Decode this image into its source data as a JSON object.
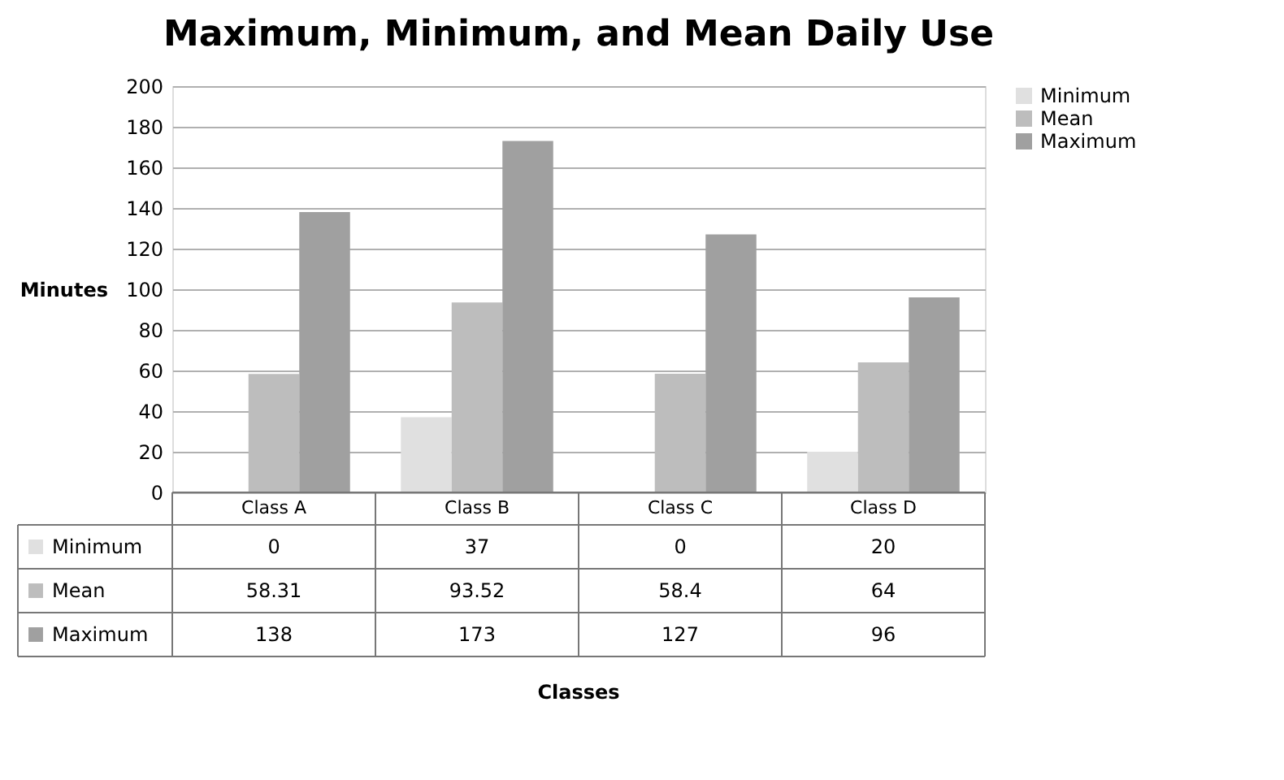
{
  "chart_data": {
    "type": "bar",
    "title": "Maximum, Minimum, and Mean Daily Use",
    "annotations": [
      "Classes"
    ],
    "ylabel": "Minutes",
    "categories": [
      "Class A",
      "Class B",
      "Class C",
      "Class D"
    ],
    "series": [
      {
        "name": "Minimum",
        "color": "#e0e0e0",
        "values": [
          0,
          37,
          0,
          20
        ]
      },
      {
        "name": "Mean",
        "color": "#bdbdbd",
        "values": [
          58.31,
          93.52,
          58.4,
          64
        ]
      },
      {
        "name": "Maximum",
        "color": "#a0a0a0",
        "values": [
          138,
          173,
          127,
          96
        ]
      }
    ],
    "ylim": [
      0,
      200
    ],
    "yticks": [
      0,
      20,
      40,
      60,
      80,
      100,
      120,
      140,
      160,
      180,
      200
    ],
    "grid": "y",
    "legend": "right",
    "data_labels": true
  }
}
